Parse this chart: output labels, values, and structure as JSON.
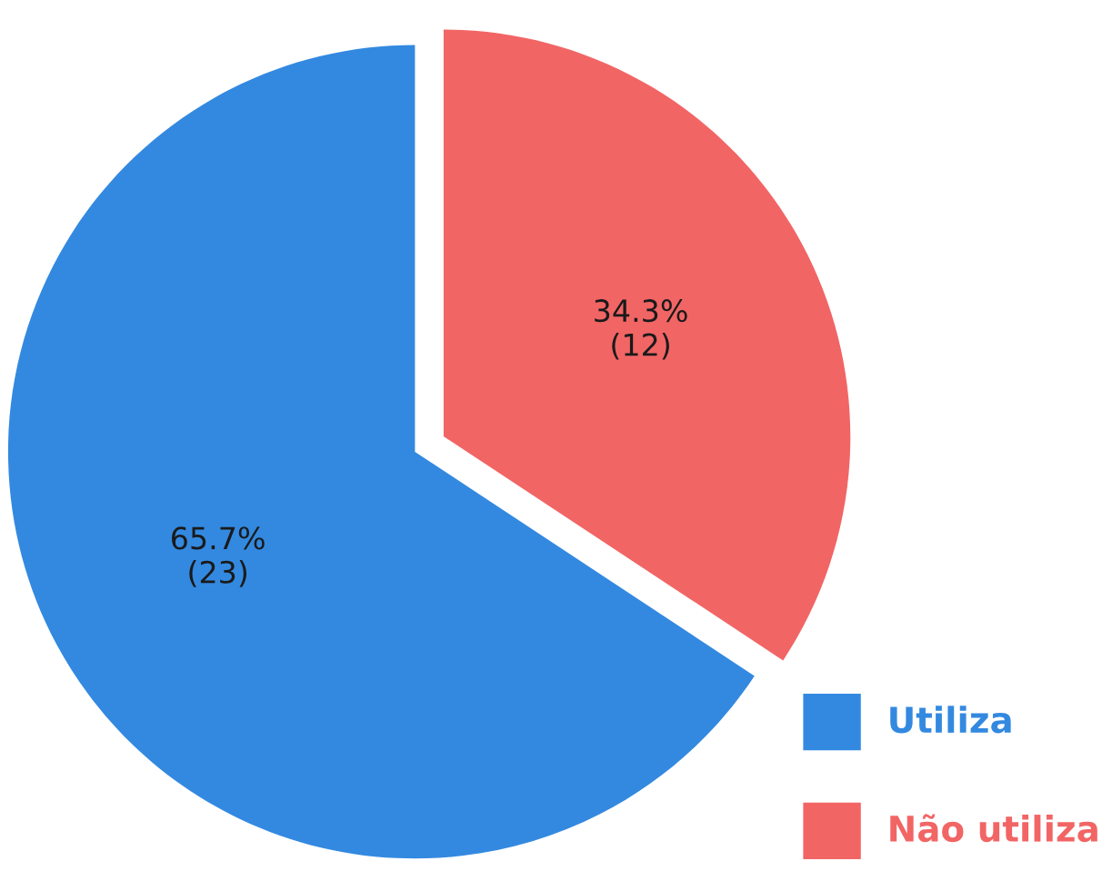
{
  "chart_data": {
    "type": "pie",
    "categories": [
      "Utiliza",
      "Não utiliza"
    ],
    "values": [
      23,
      12
    ],
    "colors": [
      "#3389e0",
      "#f26565"
    ],
    "value_labels": [
      "65.7%\n(23)",
      "34.3%\n(12)"
    ],
    "legend": "bottom right"
  }
}
